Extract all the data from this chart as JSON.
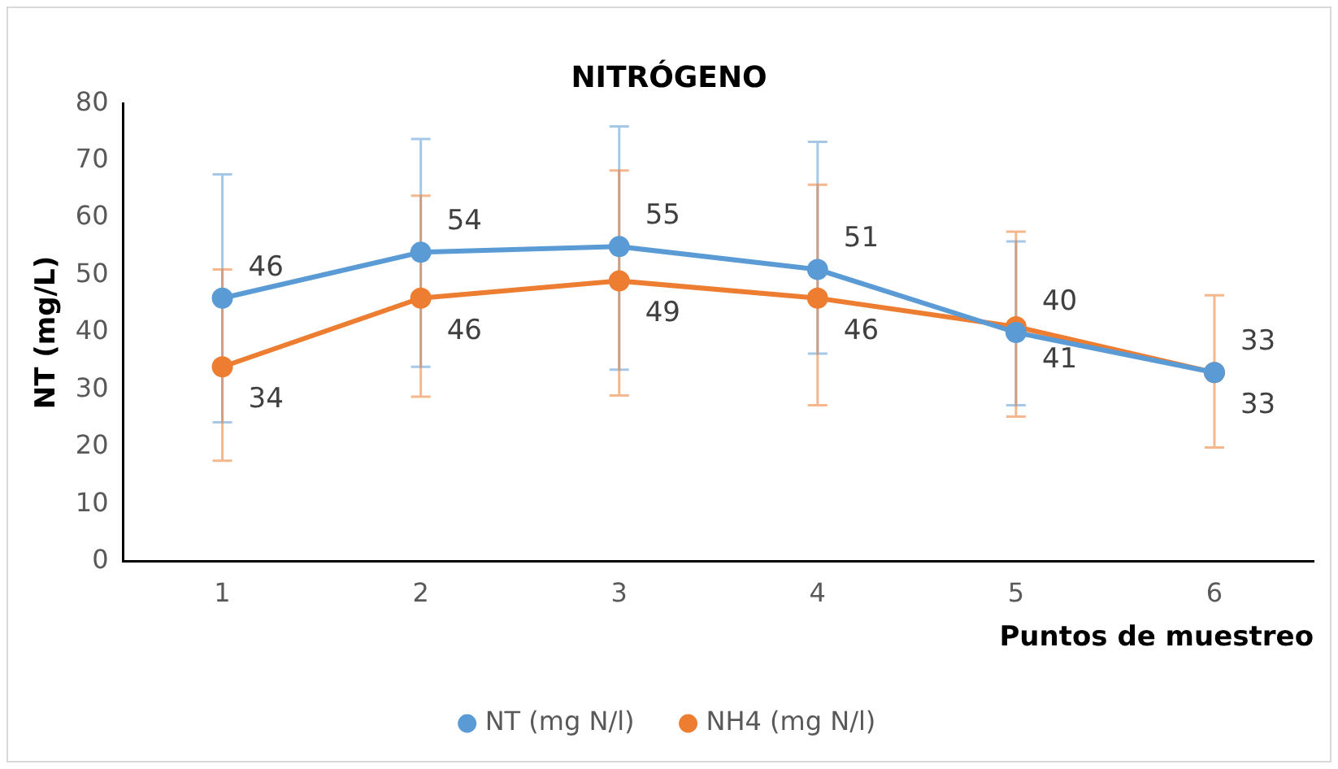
{
  "chart_data": {
    "type": "line",
    "title": "NITRÓGENO",
    "xlabel": "Puntos de muestreo",
    "ylabel": "NT (mg/L)",
    "categories": [
      "1",
      "2",
      "3",
      "4",
      "5",
      "6"
    ],
    "series": [
      {
        "name": "NT (mg N/l)",
        "color": "#5b9bd5",
        "values": [
          46,
          54,
          55,
          51,
          40,
          33
        ],
        "errors": [
          [
            24.3,
            67.6
          ],
          [
            34,
            73.8
          ],
          [
            33.5,
            76
          ],
          [
            36.3,
            73.3
          ],
          [
            27.3,
            55.9
          ],
          null
        ]
      },
      {
        "name": "NH4 (mg N/l)",
        "color": "#ed7d31",
        "values": [
          34,
          46,
          49,
          46,
          41,
          33
        ],
        "errors": [
          [
            17.6,
            51
          ],
          [
            28.8,
            63.9
          ],
          [
            29,
            68.3
          ],
          [
            27.3,
            65.8
          ],
          [
            25.3,
            57.6
          ],
          [
            19.9,
            46.5
          ]
        ]
      }
    ],
    "ylim": [
      0,
      80
    ],
    "yticks": [
      0,
      10,
      20,
      30,
      40,
      50,
      60,
      70,
      80
    ],
    "grid": false,
    "legend": "bottom",
    "marker": "circle",
    "line_style": "solid",
    "data_labels": true
  }
}
